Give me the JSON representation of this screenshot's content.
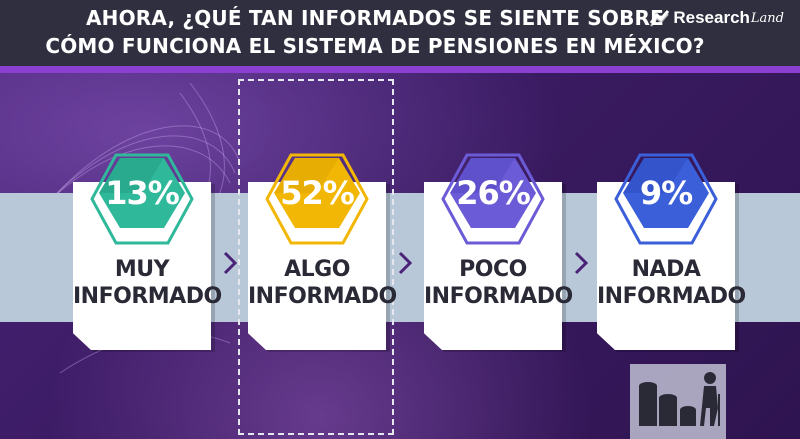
{
  "header": {
    "title_line1": "AHORA, ¿QUÉ TAN INFORMADOS SE SIENTE SOBRE",
    "title_line2": "CÓMO FUNCIONA EL SISTEMA DE PENSIONES EN MÉXICO?"
  },
  "logo": {
    "name": "Research",
    "script": "Land",
    "icon": "chart-trend-icon"
  },
  "colors": {
    "header_bg": "#2f2f3f",
    "accent": "#8a3fd1",
    "muy": "#2fb89a",
    "algo": "#f2b705",
    "poco": "#6b5bd6",
    "nada": "#3b5fd9"
  },
  "chart_data": {
    "type": "bar",
    "title": "AHORA, ¿QUÉ TAN INFORMADOS SE SIENTE SOBRE CÓMO FUNCIONA EL SISTEMA DE PENSIONES EN MÉXICO?",
    "categories": [
      "MUY INFORMADO",
      "ALGO INFORMADO",
      "POCO INFORMADO",
      "NADA INFORMADO"
    ],
    "values": [
      13,
      52,
      26,
      9
    ],
    "value_labels": [
      "13%",
      "52%",
      "26%",
      "9%"
    ],
    "label_lines": [
      [
        "MUY",
        "INFORMADO"
      ],
      [
        "ALGO",
        "INFORMADO"
      ],
      [
        "POCO",
        "INFORMADO"
      ],
      [
        "NADA",
        "INFORMADO"
      ]
    ],
    "unit": "%",
    "highlighted": "ALGO INFORMADO"
  },
  "decor": {
    "bottom_icon": "coins-elderly-person-icon",
    "arrow_icon": "chevron-right-icon"
  }
}
